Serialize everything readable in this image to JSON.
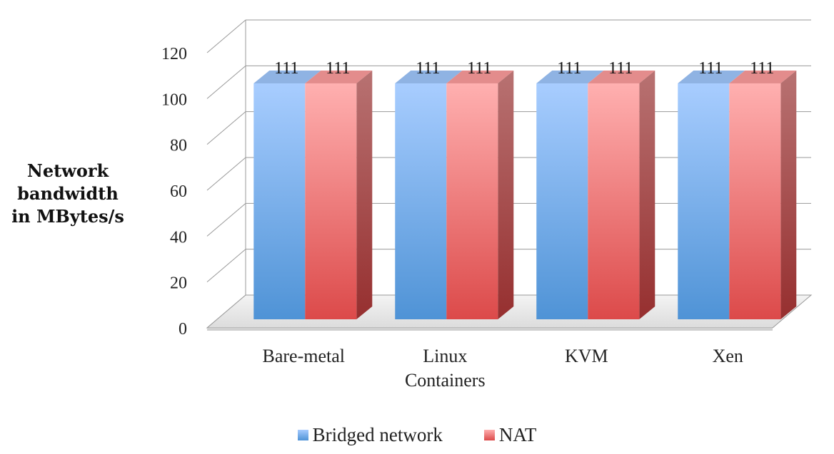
{
  "chart_data": {
    "type": "bar",
    "categories": [
      "Bare-metal",
      "Linux\nContainers",
      "KVM",
      "Xen"
    ],
    "series": [
      {
        "name": "Bridged network",
        "values": [
          111,
          111,
          111,
          111
        ],
        "color": "#5b9bd5"
      },
      {
        "name": "NAT",
        "values": [
          111,
          111,
          111,
          111
        ],
        "color": "#e05b5b"
      }
    ],
    "ylabel": "Network bandwidth in MBytes/s",
    "ylabel_lines": [
      "Network",
      "bandwidth",
      "in MBytes/s"
    ],
    "ylim": [
      0,
      120
    ],
    "yticks": [
      0,
      20,
      40,
      60,
      80,
      100,
      120
    ],
    "grid": true,
    "three_d": true,
    "legend_position": "bottom"
  }
}
